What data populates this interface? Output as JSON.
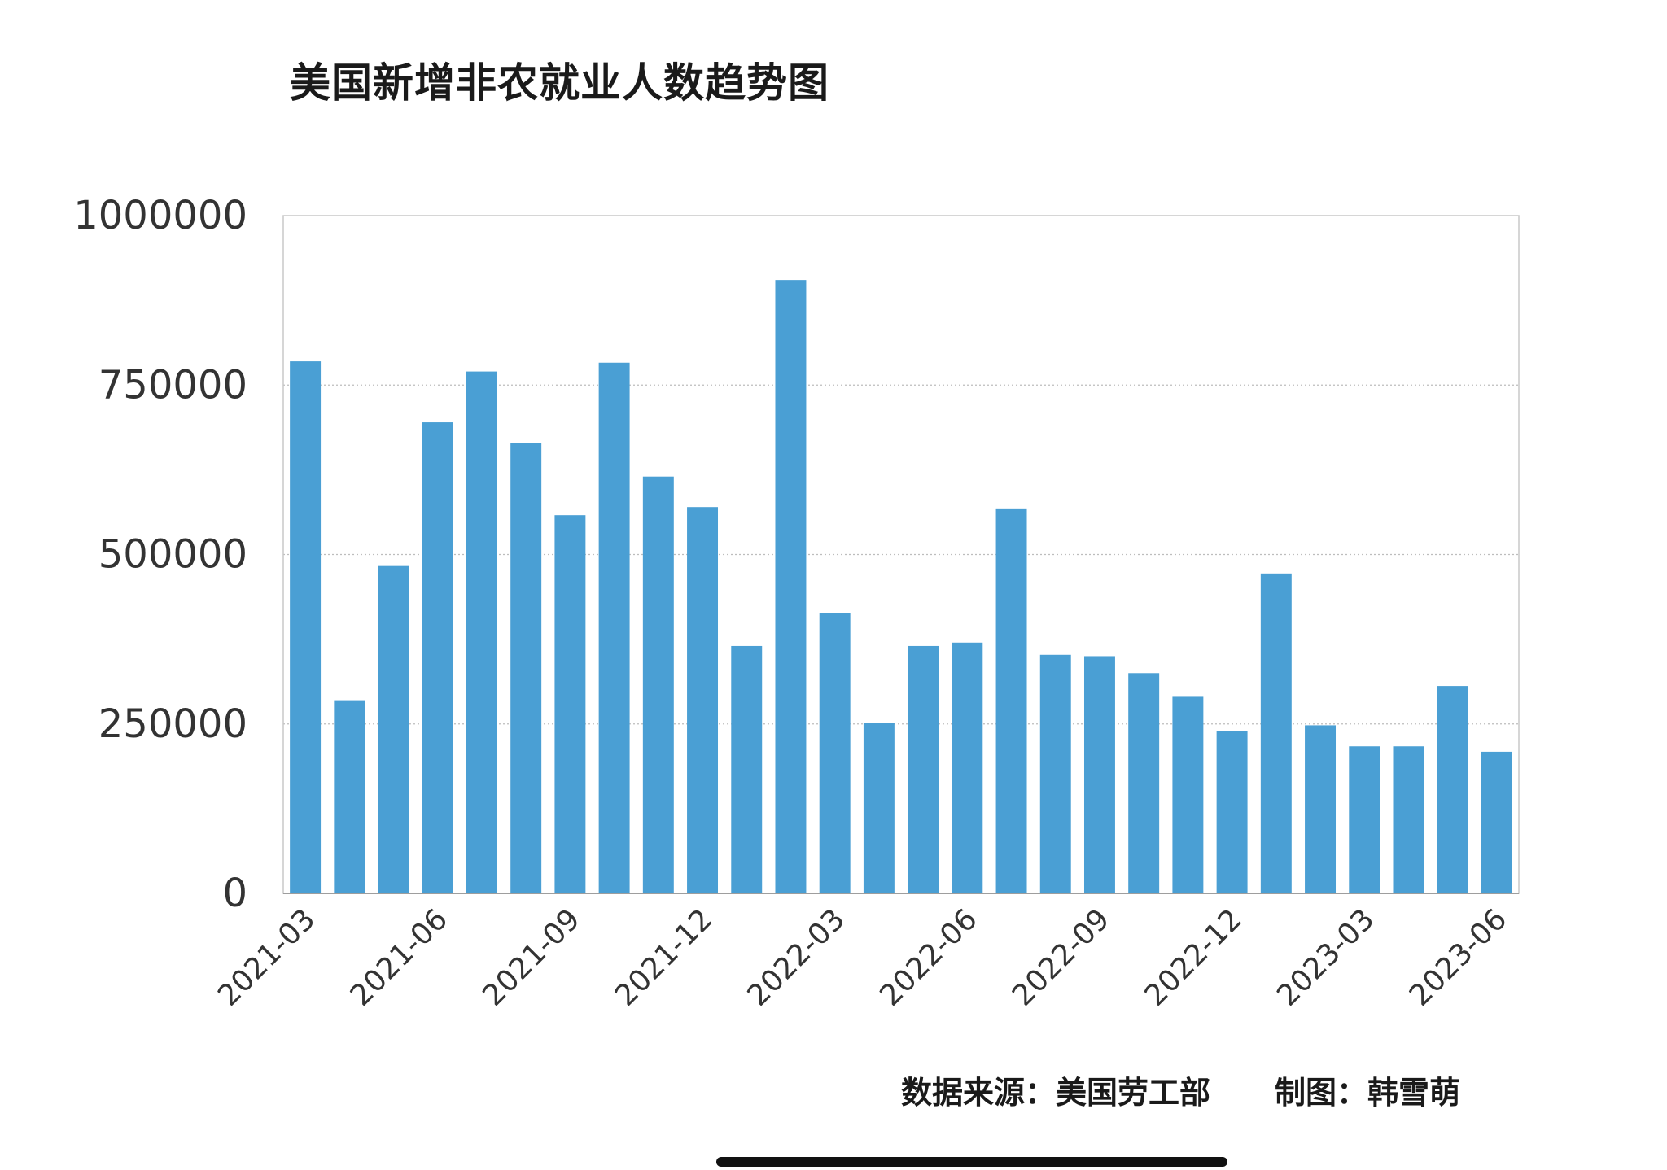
{
  "title": "美国新增非农就业人数趋势图",
  "source_note": "数据来源：美国劳工部",
  "author_note": "制图：韩雪萌",
  "colors": {
    "bar": "#4a9fd4",
    "grid": "#bdbdbd",
    "axis_text": "#333333"
  },
  "chart_data": {
    "type": "bar",
    "title": "美国新增非农就业人数趋势图",
    "xlabel": "",
    "ylabel": "",
    "ylim": [
      0,
      1000000
    ],
    "yticks": [
      0,
      250000,
      500000,
      750000,
      1000000
    ],
    "grid": true,
    "categories": [
      "2021-03",
      "2021-04",
      "2021-05",
      "2021-06",
      "2021-07",
      "2021-08",
      "2021-09",
      "2021-10",
      "2021-11",
      "2021-12",
      "2022-01",
      "2022-02",
      "2022-03",
      "2022-04",
      "2022-05",
      "2022-06",
      "2022-07",
      "2022-08",
      "2022-09",
      "2022-10",
      "2022-11",
      "2022-12",
      "2023-01",
      "2023-02",
      "2023-03",
      "2023-04",
      "2023-05",
      "2023-06"
    ],
    "tick_labels": [
      "2021-03",
      "2021-06",
      "2021-09",
      "2021-12",
      "2022-03",
      "2022-06",
      "2022-09",
      "2022-12",
      "2023-03",
      "2023-06"
    ],
    "values": [
      785000,
      285000,
      483000,
      695000,
      770000,
      665000,
      558000,
      783000,
      615000,
      570000,
      365000,
      905000,
      413000,
      252000,
      365000,
      370000,
      568000,
      352000,
      350000,
      325000,
      290000,
      240000,
      472000,
      248000,
      217000,
      217000,
      306000,
      209000
    ]
  }
}
